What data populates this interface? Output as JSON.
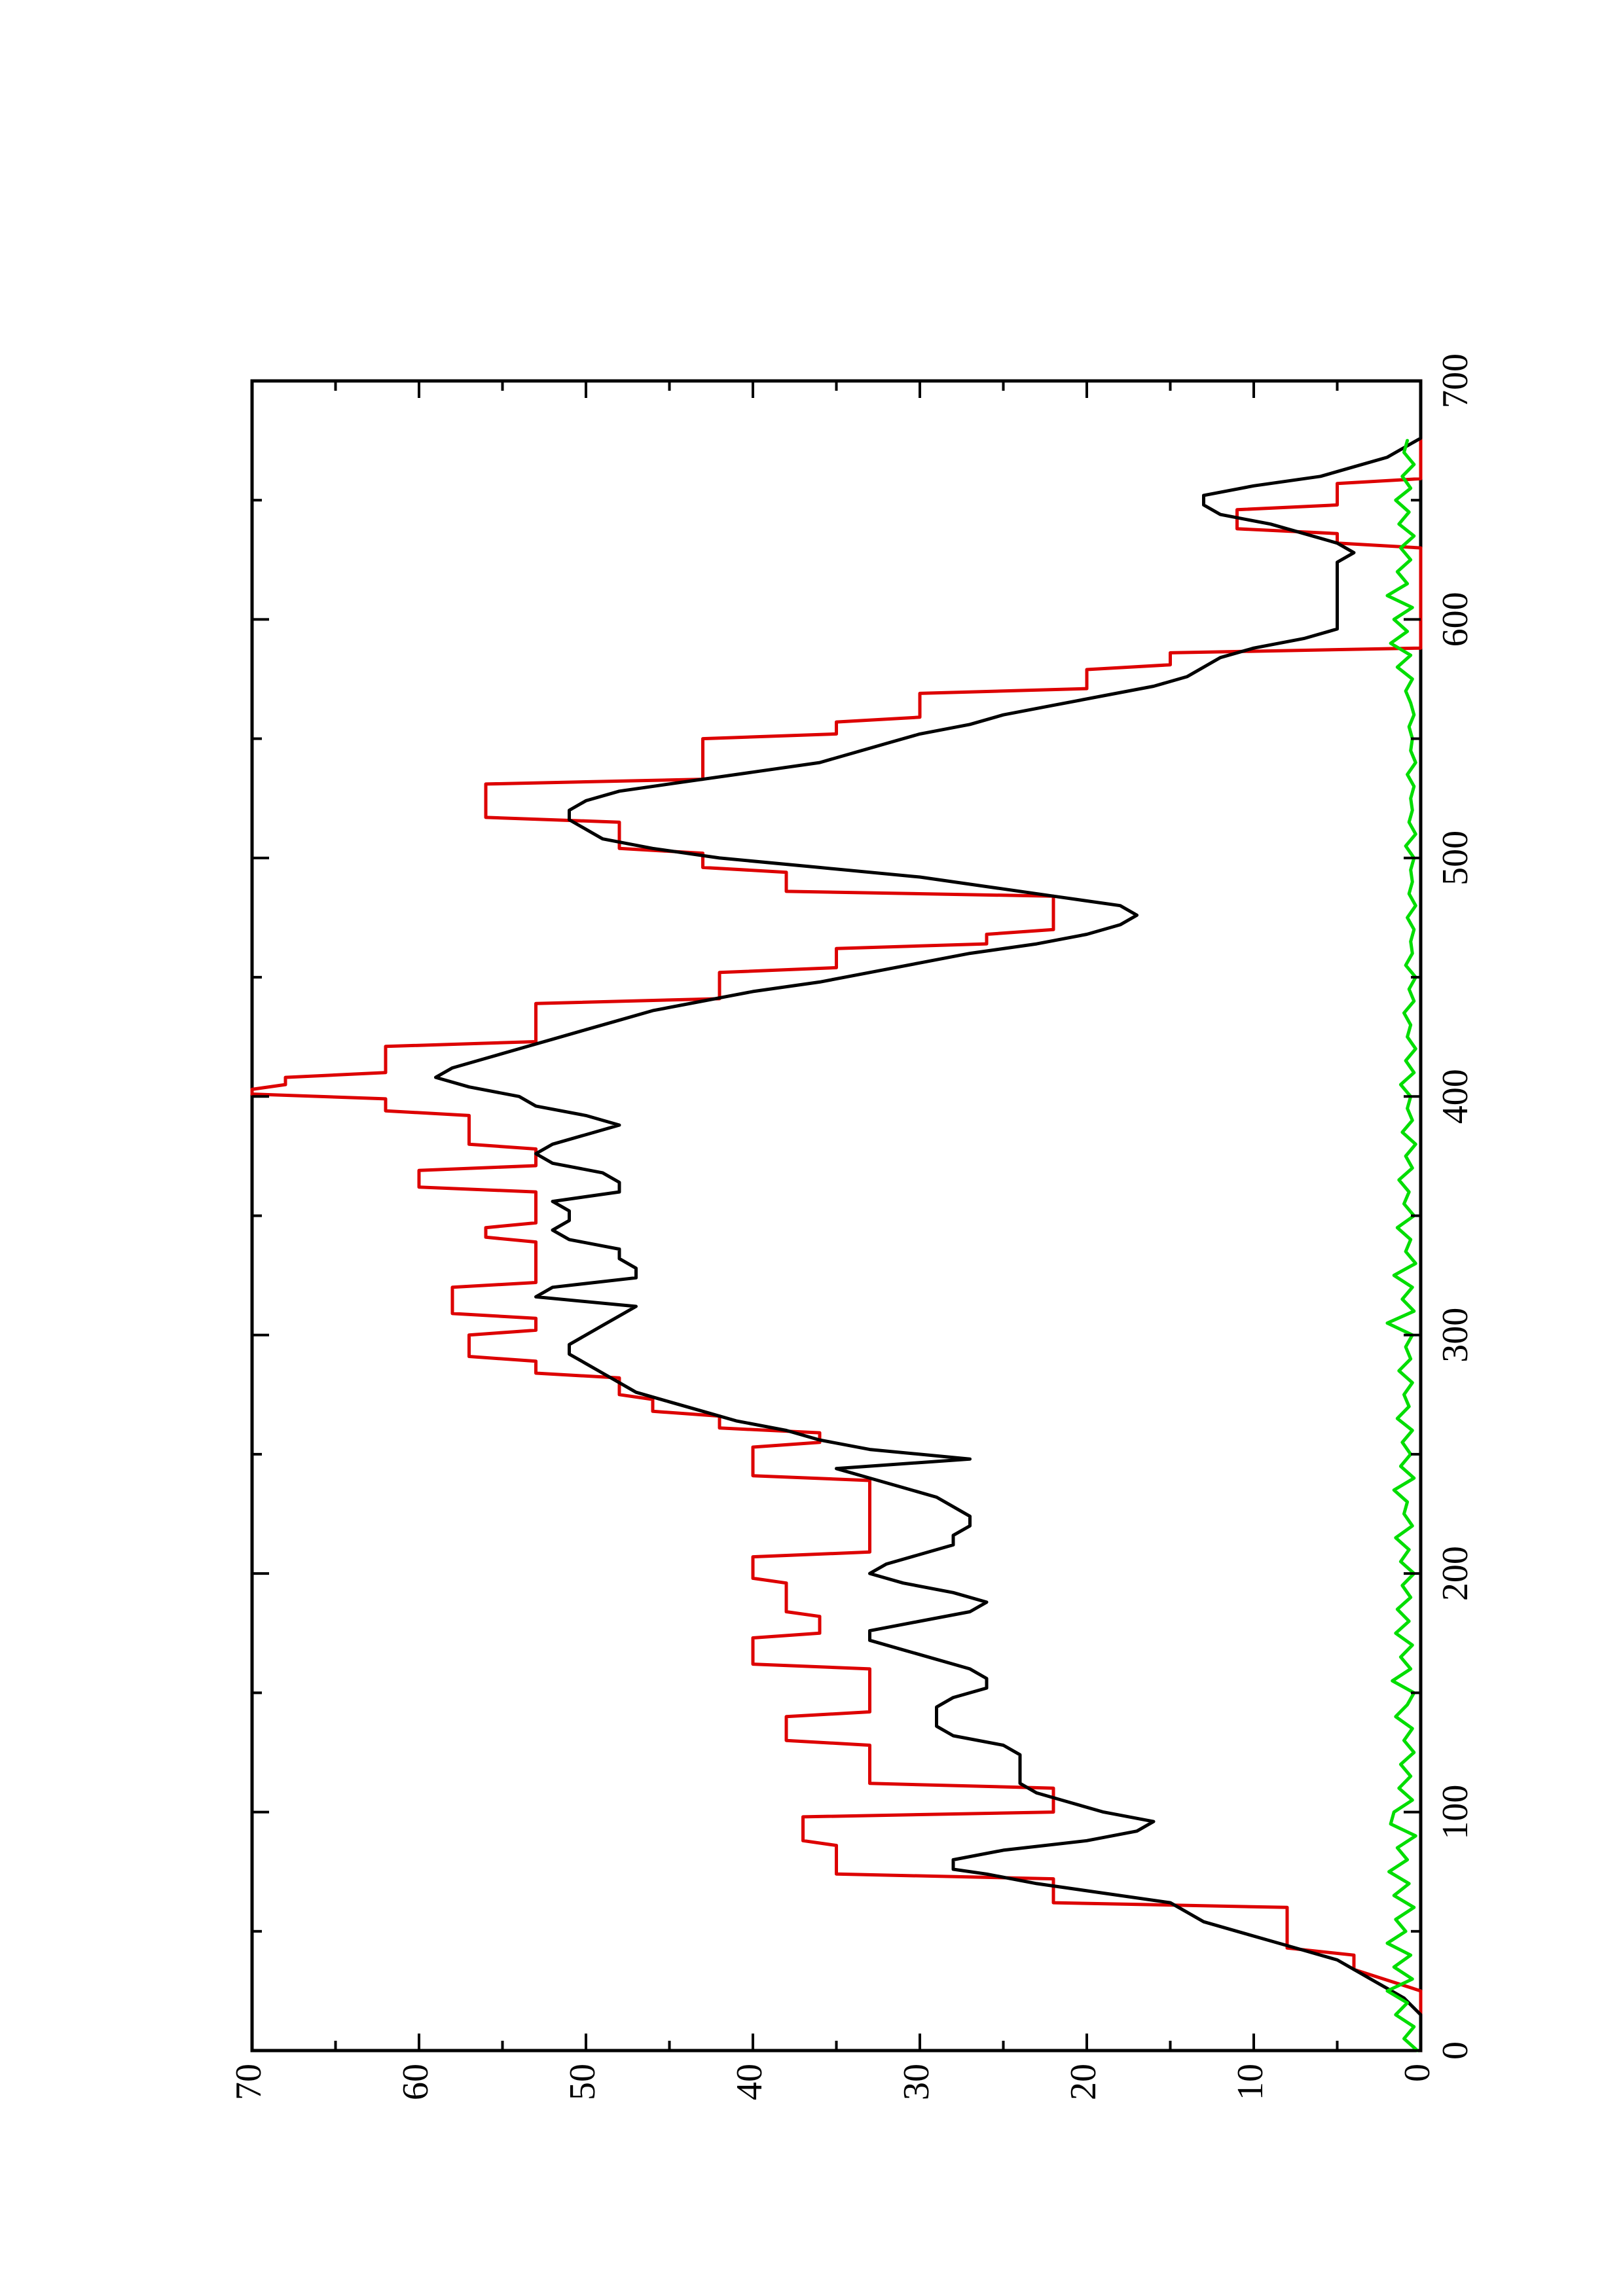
{
  "chart_data": {
    "type": "line",
    "orientation": "rotated-90-ccw",
    "title": "",
    "xlabel": "",
    "ylabel": "",
    "xlim": [
      0,
      700
    ],
    "ylim": [
      0,
      70
    ],
    "x_ticks": [
      0,
      100,
      200,
      300,
      400,
      500,
      600,
      700
    ],
    "x_minor_ticks": [
      50,
      150,
      250,
      350,
      450,
      550,
      650
    ],
    "y_ticks": [
      0,
      10,
      20,
      30,
      40,
      50,
      60,
      70
    ],
    "y_minor_ticks": [
      5,
      15,
      25,
      35,
      45,
      55,
      65
    ],
    "x_tick_labels": [
      "0",
      "100",
      "200",
      "300",
      "400",
      "500",
      "600",
      "700"
    ],
    "y_tick_labels": [
      "0",
      "10",
      "20",
      "30",
      "40",
      "50",
      "60",
      "70"
    ],
    "grid": false,
    "legend": "none",
    "colors": {
      "red": "#dd0000",
      "black": "#000000",
      "green": "#00dd00"
    },
    "series": [
      {
        "color": "#dd0000",
        "style": "step",
        "x": [
          0,
          25,
          34,
          40,
          43,
          60,
          62,
          72,
          74,
          86,
          88,
          98,
          100,
          110,
          112,
          128,
          130,
          140,
          142,
          160,
          162,
          173,
          175,
          182,
          184,
          196,
          198,
          207,
          209,
          239,
          241,
          253,
          255,
          259,
          261,
          266,
          268,
          273,
          275,
          282,
          284,
          289,
          291,
          300,
          302,
          307,
          309,
          320,
          322,
          339,
          341,
          345,
          347,
          360,
          362,
          369,
          371,
          378,
          380,
          392,
          394,
          399,
          401,
          403,
          405,
          408,
          410,
          421,
          423,
          439,
          441,
          452,
          454,
          462,
          464,
          468,
          470,
          484,
          486,
          494,
          496,
          502,
          504,
          515,
          517,
          531,
          533,
          550,
          552,
          557,
          559,
          569,
          571,
          579,
          581,
          586,
          588,
          598,
          600,
          630,
          632,
          636,
          638,
          646,
          648,
          657,
          659,
          664,
          666,
          700
        ],
        "y": [
          0,
          0,
          4,
          4,
          8,
          8,
          22,
          22,
          35,
          35,
          37,
          37,
          22,
          22,
          33,
          33,
          38,
          38,
          33,
          33,
          40,
          40,
          36,
          36,
          38,
          38,
          40,
          40,
          33,
          33,
          40,
          40,
          36,
          36,
          42,
          42,
          46,
          46,
          48,
          48,
          53,
          53,
          57,
          57,
          53,
          53,
          58,
          58,
          53,
          53,
          56,
          56,
          53,
          53,
          60,
          60,
          53,
          53,
          57,
          57,
          62,
          62,
          70,
          70,
          68,
          68,
          62,
          62,
          53,
          53,
          42,
          42,
          35,
          35,
          26,
          26,
          22,
          22,
          38,
          38,
          43,
          43,
          48,
          48,
          56,
          56,
          43,
          43,
          35,
          35,
          30,
          30,
          20,
          20,
          15,
          15,
          0,
          0,
          0,
          0,
          5,
          5,
          11,
          11,
          5,
          5,
          0,
          0,
          0,
          0
        ]
      },
      {
        "color": "#000000",
        "style": "line",
        "x": [
          0,
          15,
          22,
          26,
          30,
          34,
          38,
          42,
          46,
          50,
          54,
          58,
          62,
          66,
          70,
          74,
          76,
          80,
          84,
          88,
          92,
          96,
          100,
          104,
          108,
          112,
          116,
          120,
          124,
          128,
          132,
          136,
          140,
          144,
          148,
          152,
          156,
          160,
          164,
          168,
          172,
          176,
          180,
          184,
          188,
          192,
          196,
          200,
          204,
          208,
          212,
          216,
          220,
          224,
          228,
          232,
          236,
          240,
          244,
          248,
          252,
          256,
          260,
          264,
          268,
          272,
          276,
          280,
          284,
          288,
          292,
          296,
          300,
          304,
          308,
          312,
          316,
          320,
          324,
          328,
          332,
          336,
          340,
          344,
          348,
          352,
          356,
          360,
          364,
          368,
          372,
          376,
          380,
          384,
          388,
          392,
          396,
          400,
          404,
          408,
          412,
          416,
          420,
          424,
          428,
          432,
          436,
          440,
          444,
          448,
          452,
          456,
          460,
          464,
          468,
          472,
          476,
          480,
          484,
          488,
          492,
          496,
          500,
          504,
          508,
          512,
          516,
          520,
          524,
          528,
          532,
          536,
          540,
          544,
          548,
          552,
          556,
          560,
          564,
          568,
          572,
          576,
          580,
          584,
          588,
          592,
          596,
          600,
          604,
          608,
          612,
          616,
          620,
          624,
          628,
          632,
          636,
          640,
          644,
          648,
          652,
          656,
          660,
          664,
          668,
          672,
          676,
          680,
          700
        ],
        "y": [
          0,
          0,
          1,
          2,
          3,
          4,
          5,
          7,
          9,
          11,
          13,
          14,
          15,
          19,
          23,
          26,
          28,
          28,
          25,
          20,
          17,
          16,
          19,
          21,
          23,
          24,
          24,
          24,
          24,
          25,
          28,
          29,
          29,
          29,
          28,
          26,
          26,
          27,
          29,
          31,
          33,
          33,
          30,
          27,
          26,
          28,
          31,
          33,
          32,
          30,
          28,
          28,
          27,
          27,
          28,
          29,
          31,
          33,
          35,
          27,
          33,
          36,
          38,
          41,
          43,
          45,
          47,
          48,
          49,
          50,
          51,
          51,
          50,
          49,
          48,
          47,
          53,
          52,
          47,
          47,
          48,
          48,
          51,
          52,
          51,
          51,
          52,
          48,
          48,
          49,
          52,
          53,
          52,
          50,
          48,
          50,
          53,
          54,
          57,
          59,
          58,
          56,
          54,
          52,
          50,
          48,
          46,
          43,
          40,
          36,
          33,
          30,
          27,
          23,
          20,
          18,
          17,
          18,
          22,
          26,
          30,
          36,
          42,
          46,
          49,
          50,
          51,
          51,
          50,
          48,
          44,
          40,
          36,
          34,
          32,
          30,
          27,
          25,
          22,
          19,
          16,
          14,
          13,
          12,
          10,
          7,
          5,
          5,
          5,
          5,
          5,
          5,
          5,
          5,
          4,
          5,
          7,
          9,
          12,
          13,
          13,
          10,
          6,
          4,
          2,
          1,
          0,
          0,
          0
        ]
      },
      {
        "color": "#00dd00",
        "style": "line",
        "x": [
          0,
          5,
          10,
          15,
          20,
          25,
          30,
          35,
          40,
          45,
          50,
          55,
          60,
          65,
          70,
          75,
          80,
          85,
          90,
          95,
          100,
          105,
          110,
          115,
          120,
          125,
          130,
          135,
          140,
          145,
          150,
          155,
          160,
          165,
          170,
          175,
          180,
          185,
          190,
          195,
          200,
          205,
          210,
          215,
          220,
          225,
          230,
          235,
          240,
          245,
          250,
          255,
          260,
          265,
          270,
          275,
          280,
          285,
          290,
          295,
          300,
          305,
          310,
          315,
          320,
          325,
          330,
          335,
          340,
          345,
          350,
          355,
          360,
          365,
          370,
          375,
          380,
          385,
          390,
          395,
          400,
          405,
          410,
          415,
          420,
          425,
          430,
          435,
          440,
          445,
          450,
          455,
          460,
          465,
          470,
          475,
          480,
          485,
          490,
          495,
          500,
          505,
          510,
          515,
          520,
          525,
          530,
          535,
          540,
          545,
          550,
          555,
          560,
          565,
          570,
          575,
          580,
          585,
          590,
          595,
          600,
          605,
          610,
          615,
          620,
          625,
          630,
          635,
          640,
          645,
          650,
          655,
          660,
          665,
          670,
          675
        ],
        "y": [
          0.2,
          1.0,
          0.4,
          1.5,
          0.8,
          2.0,
          0.5,
          1.6,
          0.6,
          2.0,
          0.9,
          1.5,
          0.4,
          1.6,
          0.7,
          1.9,
          0.8,
          1.4,
          0.3,
          1.8,
          1.6,
          0.5,
          1.3,
          0.6,
          1.2,
          0.4,
          1.0,
          0.5,
          1.5,
          0.8,
          0.4,
          1.7,
          0.6,
          1.2,
          0.5,
          1.5,
          0.7,
          1.4,
          0.6,
          1.1,
          0.4,
          1.2,
          0.7,
          1.5,
          0.5,
          1.0,
          0.8,
          1.6,
          0.4,
          1.2,
          0.6,
          1.1,
          0.5,
          1.4,
          0.7,
          1.0,
          0.5,
          1.3,
          0.6,
          0.9,
          0.5,
          2.0,
          0.4,
          1.1,
          0.5,
          1.6,
          0.3,
          0.9,
          0.6,
          1.4,
          0.4,
          1.0,
          0.7,
          1.3,
          0.5,
          0.9,
          0.3,
          1.1,
          0.5,
          0.8,
          0.6,
          1.2,
          0.4,
          0.9,
          0.3,
          0.8,
          0.6,
          1.0,
          0.4,
          0.7,
          0.3,
          0.9,
          0.5,
          0.6,
          0.4,
          0.8,
          0.3,
          0.7,
          0.5,
          0.6,
          0.4,
          0.9,
          0.3,
          0.7,
          0.5,
          0.6,
          0.4,
          0.8,
          0.3,
          0.6,
          0.5,
          0.7,
          0.4,
          0.6,
          0.9,
          0.5,
          1.4,
          0.6,
          1.8,
          0.8,
          1.6,
          0.5,
          2.0,
          0.8,
          1.4,
          0.6,
          1.2,
          0.4,
          1.3,
          0.7,
          1.5,
          0.6,
          1.1,
          0.4,
          1.0,
          0.8
        ]
      }
    ]
  }
}
